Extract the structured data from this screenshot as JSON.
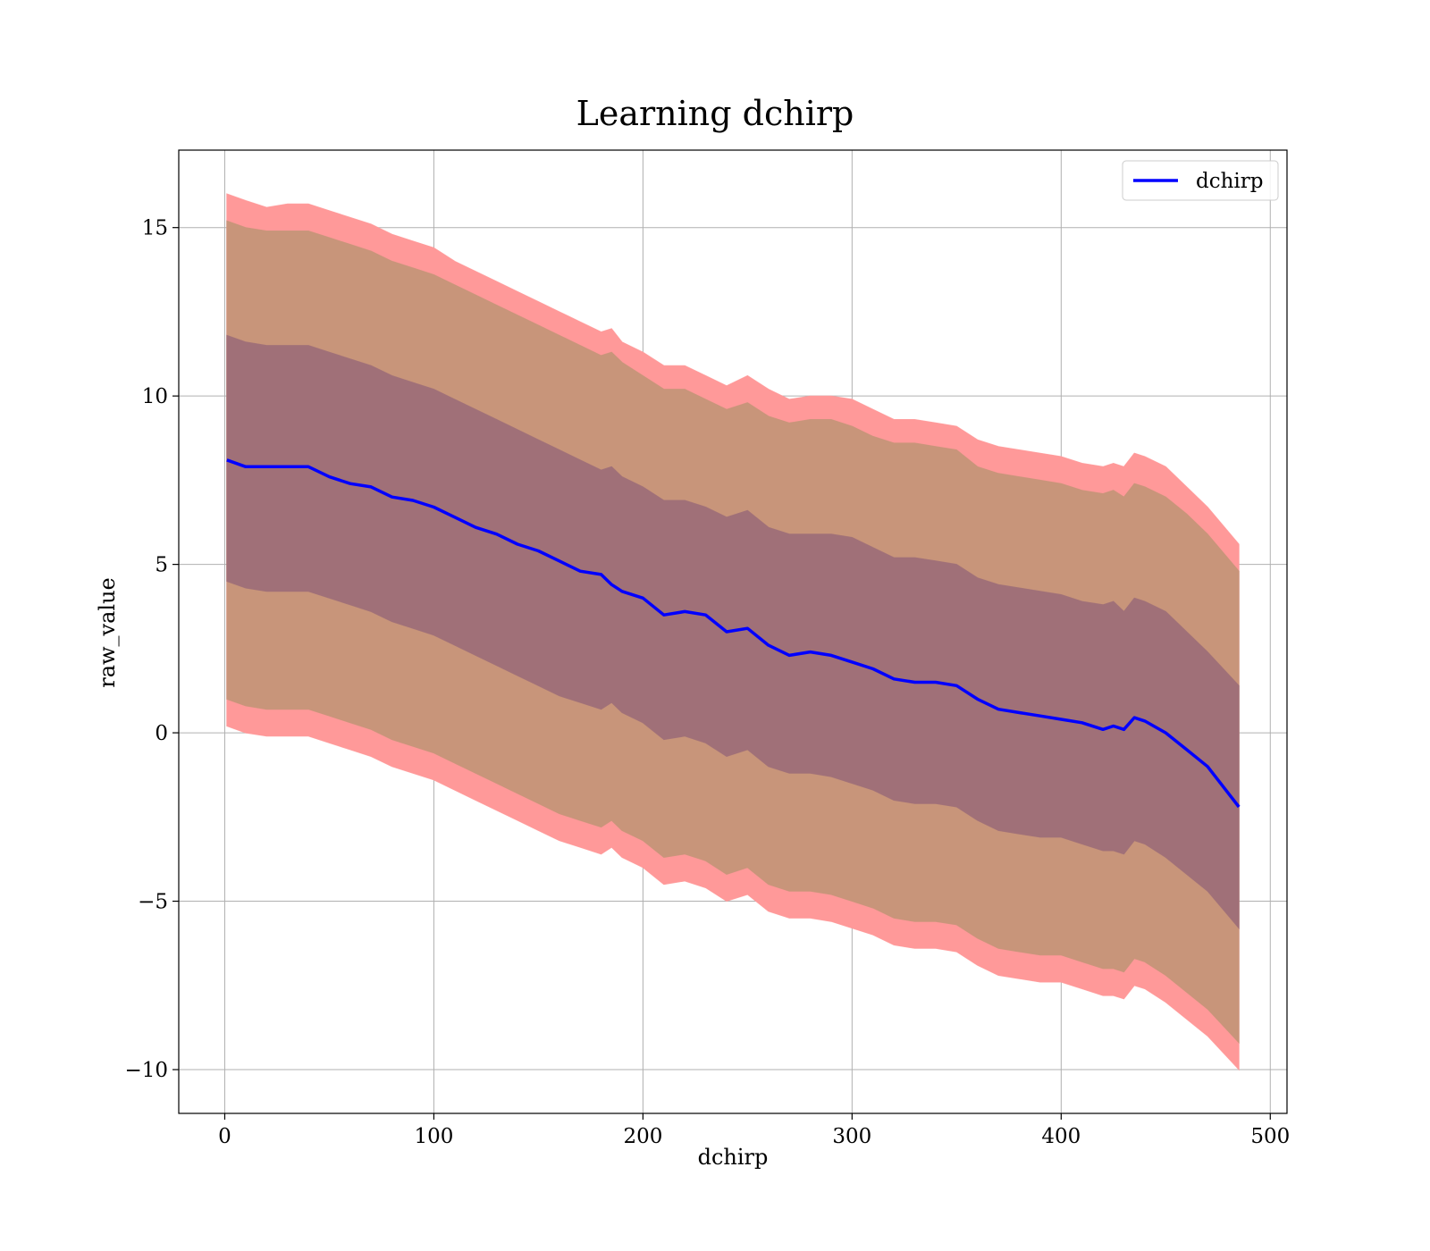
{
  "chart_data": {
    "type": "area",
    "title": "Learning dchirp",
    "xlabel": "dchirp",
    "ylabel": "raw_value",
    "xlim": [
      -22,
      508
    ],
    "ylim": [
      -11.3,
      17.3
    ],
    "x_ticks": [
      0,
      100,
      200,
      300,
      400,
      500
    ],
    "y_ticks": [
      -10,
      -5,
      0,
      5,
      10,
      15
    ],
    "x_tick_labels": [
      "0",
      "100",
      "200",
      "300",
      "400",
      "500"
    ],
    "y_tick_labels": [
      "−10",
      "−5",
      "0",
      "5",
      "10",
      "15"
    ],
    "grid": true,
    "legend": {
      "position": "top-right",
      "entries": [
        {
          "label": "dchirp",
          "color": "#0000ff"
        }
      ]
    },
    "colors": {
      "line": "#0000ff",
      "band_outer": "#ff9999",
      "band_middle": "#c8957a",
      "band_inner": "#a07078"
    },
    "x": [
      1,
      10,
      20,
      30,
      40,
      50,
      60,
      70,
      80,
      90,
      100,
      110,
      120,
      130,
      140,
      150,
      160,
      170,
      180,
      185,
      190,
      200,
      210,
      220,
      230,
      240,
      250,
      260,
      270,
      280,
      290,
      300,
      310,
      320,
      330,
      340,
      350,
      360,
      370,
      380,
      390,
      400,
      410,
      420,
      425,
      430,
      435,
      440,
      450,
      460,
      470,
      485
    ],
    "series": [
      {
        "name": "dchirp",
        "values": [
          8.1,
          7.9,
          7.9,
          7.9,
          7.9,
          7.6,
          7.4,
          7.3,
          7.0,
          6.9,
          6.7,
          6.4,
          6.1,
          5.9,
          5.6,
          5.4,
          5.1,
          4.8,
          4.7,
          4.4,
          4.2,
          4.0,
          3.5,
          3.6,
          3.5,
          3.0,
          3.1,
          2.6,
          2.3,
          2.4,
          2.3,
          2.1,
          1.9,
          1.6,
          1.5,
          1.5,
          1.4,
          1.0,
          0.7,
          0.6,
          0.5,
          0.4,
          0.3,
          0.1,
          0.2,
          0.1,
          0.45,
          0.35,
          0.0,
          -0.5,
          -1.0,
          -2.2
        ]
      }
    ],
    "bands": [
      {
        "upper": [
          16.0,
          15.8,
          15.6,
          15.7,
          15.7,
          15.5,
          15.3,
          15.1,
          14.8,
          14.6,
          14.4,
          14.0,
          13.7,
          13.4,
          13.1,
          12.8,
          12.5,
          12.2,
          11.9,
          12.0,
          11.6,
          11.3,
          10.9,
          10.9,
          10.6,
          10.3,
          10.6,
          10.2,
          9.9,
          10.0,
          10.0,
          9.9,
          9.6,
          9.3,
          9.3,
          9.2,
          9.1,
          8.7,
          8.5,
          8.4,
          8.3,
          8.2,
          8.0,
          7.9,
          8.0,
          7.9,
          8.3,
          8.2,
          7.9,
          7.3,
          6.7,
          5.6
        ],
        "lower": [
          0.2,
          0.0,
          -0.1,
          -0.1,
          -0.1,
          -0.3,
          -0.5,
          -0.7,
          -1.0,
          -1.2,
          -1.4,
          -1.7,
          -2.0,
          -2.3,
          -2.6,
          -2.9,
          -3.2,
          -3.4,
          -3.6,
          -3.4,
          -3.7,
          -4.0,
          -4.5,
          -4.4,
          -4.6,
          -5.0,
          -4.8,
          -5.3,
          -5.5,
          -5.5,
          -5.6,
          -5.8,
          -6.0,
          -6.3,
          -6.4,
          -6.4,
          -6.5,
          -6.9,
          -7.2,
          -7.3,
          -7.4,
          -7.4,
          -7.6,
          -7.8,
          -7.8,
          -7.9,
          -7.5,
          -7.6,
          -8.0,
          -8.5,
          -9.0,
          -10.0
        ]
      },
      {
        "upper": [
          15.2,
          15.0,
          14.9,
          14.9,
          14.9,
          14.7,
          14.5,
          14.3,
          14.0,
          13.8,
          13.6,
          13.3,
          13.0,
          12.7,
          12.4,
          12.1,
          11.8,
          11.5,
          11.2,
          11.3,
          11.0,
          10.6,
          10.2,
          10.2,
          9.9,
          9.6,
          9.8,
          9.4,
          9.2,
          9.3,
          9.3,
          9.1,
          8.8,
          8.6,
          8.6,
          8.5,
          8.4,
          7.9,
          7.7,
          7.6,
          7.5,
          7.4,
          7.2,
          7.1,
          7.2,
          7.0,
          7.4,
          7.3,
          7.0,
          6.5,
          5.9,
          4.8
        ],
        "lower": [
          1.0,
          0.8,
          0.7,
          0.7,
          0.7,
          0.5,
          0.3,
          0.1,
          -0.2,
          -0.4,
          -0.6,
          -0.9,
          -1.2,
          -1.5,
          -1.8,
          -2.1,
          -2.4,
          -2.6,
          -2.8,
          -2.6,
          -2.9,
          -3.2,
          -3.7,
          -3.6,
          -3.8,
          -4.2,
          -4.0,
          -4.5,
          -4.7,
          -4.7,
          -4.8,
          -5.0,
          -5.2,
          -5.5,
          -5.6,
          -5.6,
          -5.7,
          -6.1,
          -6.4,
          -6.5,
          -6.6,
          -6.6,
          -6.8,
          -7.0,
          -7.0,
          -7.1,
          -6.7,
          -6.8,
          -7.2,
          -7.7,
          -8.2,
          -9.2
        ]
      },
      {
        "upper": [
          11.8,
          11.6,
          11.5,
          11.5,
          11.5,
          11.3,
          11.1,
          10.9,
          10.6,
          10.4,
          10.2,
          9.9,
          9.6,
          9.3,
          9.0,
          8.7,
          8.4,
          8.1,
          7.8,
          7.9,
          7.6,
          7.3,
          6.9,
          6.9,
          6.7,
          6.4,
          6.6,
          6.1,
          5.9,
          5.9,
          5.9,
          5.8,
          5.5,
          5.2,
          5.2,
          5.1,
          5.0,
          4.6,
          4.4,
          4.3,
          4.2,
          4.1,
          3.9,
          3.8,
          3.9,
          3.6,
          4.0,
          3.9,
          3.6,
          3.0,
          2.4,
          1.4
        ],
        "lower": [
          4.5,
          4.3,
          4.2,
          4.2,
          4.2,
          4.0,
          3.8,
          3.6,
          3.3,
          3.1,
          2.9,
          2.6,
          2.3,
          2.0,
          1.7,
          1.4,
          1.1,
          0.9,
          0.7,
          0.9,
          0.6,
          0.3,
          -0.2,
          -0.1,
          -0.3,
          -0.7,
          -0.5,
          -1.0,
          -1.2,
          -1.2,
          -1.3,
          -1.5,
          -1.7,
          -2.0,
          -2.1,
          -2.1,
          -2.2,
          -2.6,
          -2.9,
          -3.0,
          -3.1,
          -3.1,
          -3.3,
          -3.5,
          -3.5,
          -3.6,
          -3.2,
          -3.3,
          -3.7,
          -4.2,
          -4.7,
          -5.8
        ]
      }
    ]
  }
}
